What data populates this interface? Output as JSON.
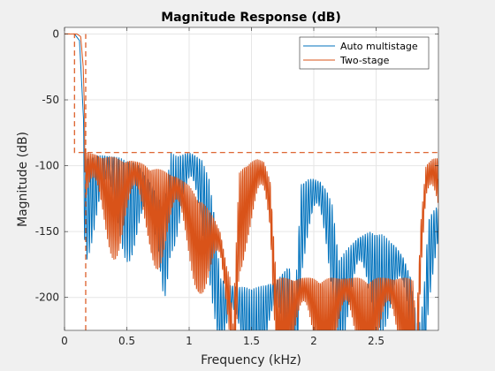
{
  "chart_data": {
    "type": "line",
    "title": "Magnitude Response (dB)",
    "xlabel": "Frequency (kHz)",
    "ylabel": "Magnitude (dB)",
    "xlim": [
      0,
      3.0
    ],
    "ylim": [
      -225,
      5
    ],
    "x_ticks": [
      0,
      0.5,
      1,
      1.5,
      2,
      2.5
    ],
    "x_tick_labels": [
      "0",
      "0.5",
      "1",
      "1.5",
      "2",
      "2.5"
    ],
    "y_ticks": [
      0,
      -50,
      -100,
      -150,
      -200
    ],
    "y_tick_labels": [
      "0",
      "-50",
      "-100",
      "-150",
      "-200"
    ],
    "grid": true,
    "legend_position": "top-right",
    "series": [
      {
        "name": "Auto multistage",
        "color": "#0072bd",
        "envelope_top": [
          [
            0.0,
            0
          ],
          [
            0.08,
            0
          ],
          [
            0.12,
            -5
          ],
          [
            0.15,
            -60
          ],
          [
            0.17,
            -95
          ],
          [
            0.2,
            -93
          ],
          [
            0.3,
            -92
          ],
          [
            0.4,
            -93
          ],
          [
            0.5,
            -95
          ],
          [
            0.6,
            -100
          ],
          [
            0.7,
            -115
          ],
          [
            0.76,
            -125
          ],
          [
            0.8,
            -135
          ],
          [
            0.85,
            -90
          ],
          [
            0.9,
            -92
          ],
          [
            0.95,
            -91
          ],
          [
            1.0,
            -90
          ],
          [
            1.05,
            -92
          ],
          [
            1.1,
            -95
          ],
          [
            1.16,
            -110
          ],
          [
            1.2,
            -135
          ],
          [
            1.25,
            -185
          ],
          [
            1.3,
            -190
          ],
          [
            1.4,
            -192
          ],
          [
            1.55,
            -192
          ],
          [
            1.7,
            -188
          ],
          [
            1.8,
            -175
          ],
          [
            1.85,
            -200
          ],
          [
            1.9,
            -113
          ],
          [
            1.95,
            -110
          ],
          [
            2.0,
            -110
          ],
          [
            2.05,
            -112
          ],
          [
            2.1,
            -118
          ],
          [
            2.15,
            -130
          ],
          [
            2.2,
            -170
          ],
          [
            2.25,
            -165
          ],
          [
            2.35,
            -155
          ],
          [
            2.45,
            -150
          ],
          [
            2.55,
            -152
          ],
          [
            2.65,
            -160
          ],
          [
            2.72,
            -170
          ],
          [
            2.78,
            -185
          ],
          [
            2.8,
            -200
          ],
          [
            2.84,
            -225
          ],
          [
            2.88,
            -200
          ],
          [
            2.92,
            -140
          ],
          [
            2.95,
            -135
          ],
          [
            3.0,
            -130
          ]
        ]
      },
      {
        "name": "Two-stage",
        "color": "#d95319",
        "envelope_top": [
          [
            0.0,
            0
          ],
          [
            0.1,
            0
          ],
          [
            0.13,
            -2
          ],
          [
            0.15,
            -25
          ],
          [
            0.17,
            -90
          ],
          [
            0.3,
            -92
          ],
          [
            0.5,
            -95
          ],
          [
            0.7,
            -100
          ],
          [
            0.9,
            -108
          ],
          [
            1.0,
            -115
          ],
          [
            1.1,
            -125
          ],
          [
            1.2,
            -140
          ],
          [
            1.25,
            -150
          ],
          [
            1.3,
            -175
          ],
          [
            1.33,
            -185
          ],
          [
            1.35,
            -225
          ],
          [
            1.4,
            -105
          ],
          [
            1.45,
            -97
          ],
          [
            1.55,
            -95
          ],
          [
            1.6,
            -97
          ],
          [
            1.65,
            -110
          ],
          [
            1.7,
            -185
          ],
          [
            1.8,
            -185
          ],
          [
            2.0,
            -185
          ],
          [
            2.2,
            -185
          ],
          [
            2.4,
            -185
          ],
          [
            2.6,
            -185
          ],
          [
            2.8,
            -185
          ],
          [
            2.82,
            -225
          ],
          [
            2.86,
            -140
          ],
          [
            2.9,
            -100
          ],
          [
            2.95,
            -95
          ],
          [
            3.0,
            -93
          ]
        ],
        "spec_mask": {
          "passband_edge_khz": 0.08,
          "stopband_edge_khz": 0.17,
          "passband_level_db": 0,
          "stopband_level_db": -90
        }
      }
    ]
  }
}
